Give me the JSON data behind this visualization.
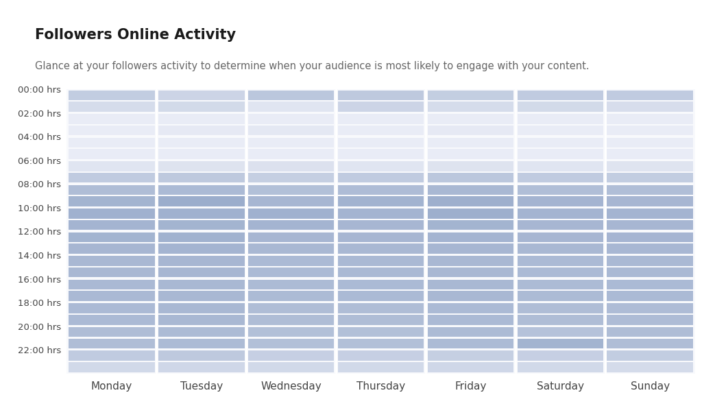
{
  "title": "Followers Online Activity",
  "subtitle": "Glance at your followers activity to determine when your audience is most likely to engage with your content.",
  "days": [
    "Monday",
    "Tuesday",
    "Wednesday",
    "Thursday",
    "Friday",
    "Saturday",
    "Sunday"
  ],
  "hours": [
    "00:00 hrs",
    "02:00 hrs",
    "04:00 hrs",
    "06:00 hrs",
    "08:00 hrs",
    "10:00 hrs",
    "12:00 hrs",
    "14:00 hrs",
    "16:00 hrs",
    "18:00 hrs",
    "20:00 hrs",
    "22:00 hrs"
  ],
  "background_color": "#ffffff",
  "color_low": "#eef0f8",
  "color_high": "#7b93bb",
  "activity_data": [
    [
      0.38,
      0.3,
      0.44,
      0.42,
      0.37,
      0.4,
      0.4
    ],
    [
      0.22,
      0.24,
      0.12,
      0.3,
      0.22,
      0.24,
      0.2
    ],
    [
      0.04,
      0.04,
      0.04,
      0.04,
      0.04,
      0.04,
      0.04
    ],
    [
      0.04,
      0.07,
      0.09,
      0.04,
      0.07,
      0.04,
      0.04
    ],
    [
      0.04,
      0.04,
      0.04,
      0.04,
      0.04,
      0.04,
      0.04
    ],
    [
      0.04,
      0.04,
      0.04,
      0.04,
      0.04,
      0.04,
      0.04
    ],
    [
      0.12,
      0.14,
      0.16,
      0.12,
      0.14,
      0.12,
      0.13
    ],
    [
      0.4,
      0.42,
      0.36,
      0.4,
      0.44,
      0.4,
      0.38
    ],
    [
      0.55,
      0.58,
      0.52,
      0.56,
      0.6,
      0.54,
      0.54
    ],
    [
      0.65,
      0.72,
      0.62,
      0.66,
      0.7,
      0.64,
      0.62
    ],
    [
      0.68,
      0.68,
      0.68,
      0.64,
      0.7,
      0.64,
      0.64
    ],
    [
      0.64,
      0.65,
      0.64,
      0.62,
      0.65,
      0.62,
      0.62
    ],
    [
      0.65,
      0.67,
      0.62,
      0.62,
      0.64,
      0.62,
      0.63
    ],
    [
      0.62,
      0.64,
      0.6,
      0.6,
      0.62,
      0.6,
      0.61
    ],
    [
      0.6,
      0.62,
      0.58,
      0.59,
      0.6,
      0.58,
      0.59
    ],
    [
      0.6,
      0.62,
      0.58,
      0.59,
      0.6,
      0.58,
      0.59
    ],
    [
      0.59,
      0.6,
      0.57,
      0.58,
      0.6,
      0.57,
      0.58
    ],
    [
      0.59,
      0.6,
      0.57,
      0.58,
      0.6,
      0.57,
      0.58
    ],
    [
      0.58,
      0.6,
      0.55,
      0.55,
      0.58,
      0.55,
      0.56
    ],
    [
      0.58,
      0.6,
      0.55,
      0.55,
      0.58,
      0.55,
      0.56
    ],
    [
      0.55,
      0.57,
      0.52,
      0.52,
      0.57,
      0.5,
      0.55
    ],
    [
      0.55,
      0.57,
      0.52,
      0.52,
      0.57,
      0.65,
      0.55
    ],
    [
      0.4,
      0.42,
      0.35,
      0.35,
      0.36,
      0.35,
      0.38
    ],
    [
      0.25,
      0.27,
      0.25,
      0.25,
      0.27,
      0.25,
      0.23
    ]
  ]
}
